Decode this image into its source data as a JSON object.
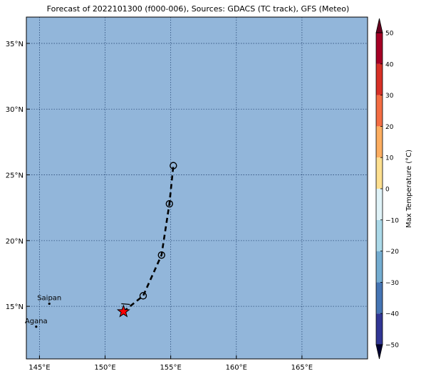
{
  "title": "Forecast of 2022101300 (f000-006), Sources: GDACS (TC track), GFS (Meteo)",
  "map": {
    "lon_range": [
      144,
      170
    ],
    "lat_range": [
      11,
      37
    ],
    "ocean_color": "#92b6da",
    "grid_color": "#2d4e7a",
    "lon_ticks": [
      {
        "value": 145,
        "label": "145°E"
      },
      {
        "value": 150,
        "label": "150°E"
      },
      {
        "value": 155,
        "label": "155°E"
      },
      {
        "value": 160,
        "label": "160°E"
      },
      {
        "value": 165,
        "label": "165°E"
      }
    ],
    "lat_ticks": [
      {
        "value": 15,
        "label": "15°N"
      },
      {
        "value": 20,
        "label": "20°N"
      },
      {
        "value": 25,
        "label": "25°N"
      },
      {
        "value": 30,
        "label": "30°N"
      },
      {
        "value": 35,
        "label": "35°N"
      }
    ],
    "places": [
      {
        "name": "Saipan",
        "lon": 145.75,
        "lat": 15.2
      },
      {
        "name": "Agana",
        "lon": 144.75,
        "lat": 13.45
      }
    ],
    "track": [
      {
        "lon": 151.4,
        "lat": 14.6,
        "marker": "star"
      },
      {
        "lon": 152.9,
        "lat": 15.8,
        "marker": "circle"
      },
      {
        "lon": 154.3,
        "lat": 18.9,
        "marker": "circle"
      },
      {
        "lon": 154.9,
        "lat": 22.8,
        "marker": "circle"
      },
      {
        "lon": 155.2,
        "lat": 25.7,
        "marker": "circle"
      }
    ],
    "current_color": "#ff0000"
  },
  "colorbar": {
    "label": "Max Temperature (°C)",
    "min": -50,
    "max": 50,
    "ticks": [
      {
        "value": 50,
        "label": "50"
      },
      {
        "value": 40,
        "label": "40"
      },
      {
        "value": 30,
        "label": "30"
      },
      {
        "value": 20,
        "label": "20"
      },
      {
        "value": 10,
        "label": "10"
      },
      {
        "value": 0,
        "label": "0"
      },
      {
        "value": -10,
        "label": "−10"
      },
      {
        "value": -20,
        "label": "−20"
      },
      {
        "value": -30,
        "label": "−30"
      },
      {
        "value": -40,
        "label": "−40"
      },
      {
        "value": -50,
        "label": "−50"
      }
    ],
    "colors": [
      "#313695",
      "#4575b4",
      "#74add1",
      "#abd9e9",
      "#e0f3f8",
      "#fee090",
      "#fdae61",
      "#f46d43",
      "#d73027",
      "#a50026"
    ],
    "under_color": "#000033",
    "over_color": "#67001f"
  }
}
